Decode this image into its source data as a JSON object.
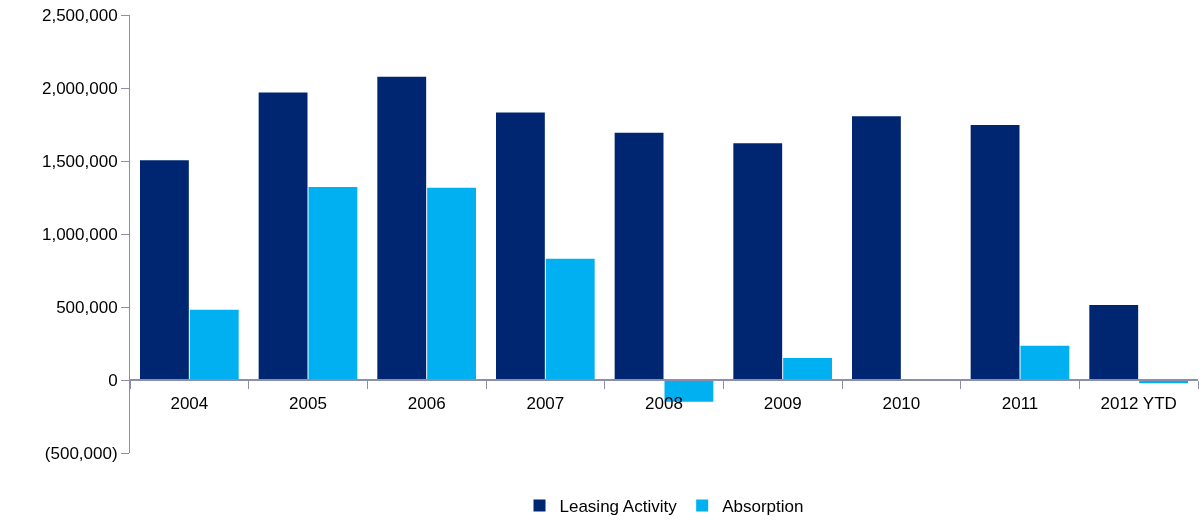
{
  "chart_data": {
    "type": "bar",
    "categories": [
      "2004",
      "2005",
      "2006",
      "2007",
      "2008",
      "2009",
      "2010",
      "2011",
      "2012 YTD"
    ],
    "series": [
      {
        "name": "Leasing Activity",
        "color": "#002672",
        "values": [
          1505000,
          1969000,
          2077000,
          1832000,
          1693000,
          1621000,
          1806000,
          1747000,
          513000
        ]
      },
      {
        "name": "Absorption",
        "color": "#00b0f0",
        "values": [
          482000,
          1322000,
          1317000,
          830000,
          -149000,
          150000,
          0,
          235000,
          -23000
        ]
      }
    ],
    "ylim": [
      -500000,
      2500000
    ],
    "yticks": [
      {
        "value": -500000,
        "label": "(500,000)"
      },
      {
        "value": 0,
        "label": "0"
      },
      {
        "value": 500000,
        "label": "500,000"
      },
      {
        "value": 1000000,
        "label": "1,000,000"
      },
      {
        "value": 1500000,
        "label": "1,500,000"
      },
      {
        "value": 2000000,
        "label": "2,000,000"
      },
      {
        "value": 2500000,
        "label": "2,500,000"
      }
    ],
    "legend": "bottom"
  }
}
